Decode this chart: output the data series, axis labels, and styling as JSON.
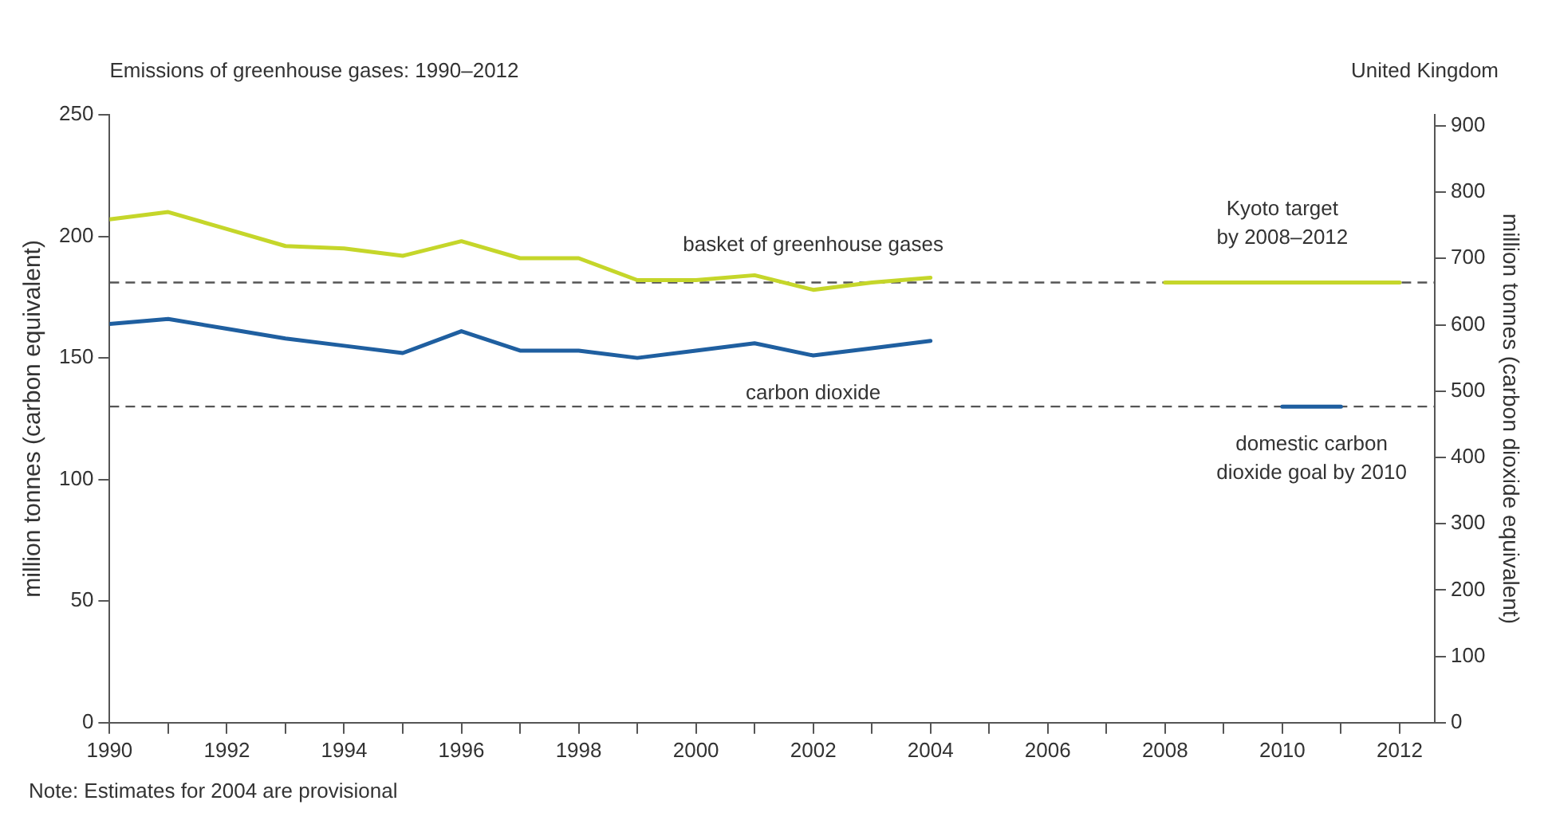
{
  "chart_data": {
    "type": "line",
    "title": "Emissions of greenhouse gases: 1990–2012",
    "subtitle": "United Kingdom",
    "ylabel": "million tonnes (carbon equivalent)",
    "y2label": "million tonnes (carbon dioxide equivalent)",
    "x": [
      1990,
      1991,
      1992,
      1993,
      1994,
      1995,
      1996,
      1997,
      1998,
      1999,
      2000,
      2001,
      2002,
      2003,
      2004
    ],
    "series": [
      {
        "name": "basket of greenhouse gases",
        "color": "#c5d62a",
        "values": [
          207,
          210,
          203,
          196,
          195,
          192,
          198,
          191,
          191,
          182,
          182,
          184,
          178,
          181,
          183
        ]
      },
      {
        "name": "carbon dioxide",
        "color": "#1f5fa0",
        "values": [
          164,
          166,
          162,
          158,
          155,
          152,
          161,
          153,
          153,
          150,
          153,
          156,
          151,
          154,
          157
        ]
      },
      {
        "name": "Kyoto target\nby 2008–2012",
        "color": "#c5d62a",
        "x": [
          2008,
          2012
        ],
        "values": [
          181,
          181
        ]
      },
      {
        "name": "domestic carbon\ndioxide goal by 2010",
        "color": "#1f5fa0",
        "x": [
          2010,
          2011
        ],
        "values": [
          130,
          130
        ]
      }
    ],
    "xlim": [
      1990,
      2012.6
    ],
    "xticks": [
      1990,
      {
        "value": 1991,
        "label": null
      },
      1992,
      {
        "value": 1993,
        "label": null
      },
      1994,
      {
        "value": 1995,
        "label": null
      },
      1996,
      {
        "value": 1997,
        "label": null
      },
      1998,
      {
        "value": 1999,
        "label": null
      },
      2000,
      {
        "value": 2001,
        "label": null
      },
      2002,
      {
        "value": 2003,
        "label": null
      },
      2004,
      {
        "value": 2005,
        "label": null
      },
      2006,
      {
        "value": 2007,
        "label": null
      },
      2008,
      {
        "value": 2009,
        "label": null
      },
      2010,
      {
        "value": 2011,
        "label": null
      },
      2012
    ],
    "ylim": [
      0,
      250
    ],
    "yticks": [
      0,
      50,
      100,
      150,
      200,
      250
    ],
    "y2lim": [
      0,
      916.7
    ],
    "y2ticks": [
      0,
      100,
      200,
      300,
      400,
      500,
      600,
      700,
      800,
      900
    ],
    "ref_lines": [
      {
        "axis": "y",
        "value": 181,
        "color": "#555555",
        "line_style": "dashed"
      },
      {
        "axis": "y",
        "value": 130,
        "color": "#555555",
        "line_style": "dashed"
      }
    ],
    "annotations": [
      "Note: Estimates for 2004 are provisional"
    ],
    "grid": false,
    "legend": false,
    "marker": "none",
    "line_style": "solid"
  }
}
